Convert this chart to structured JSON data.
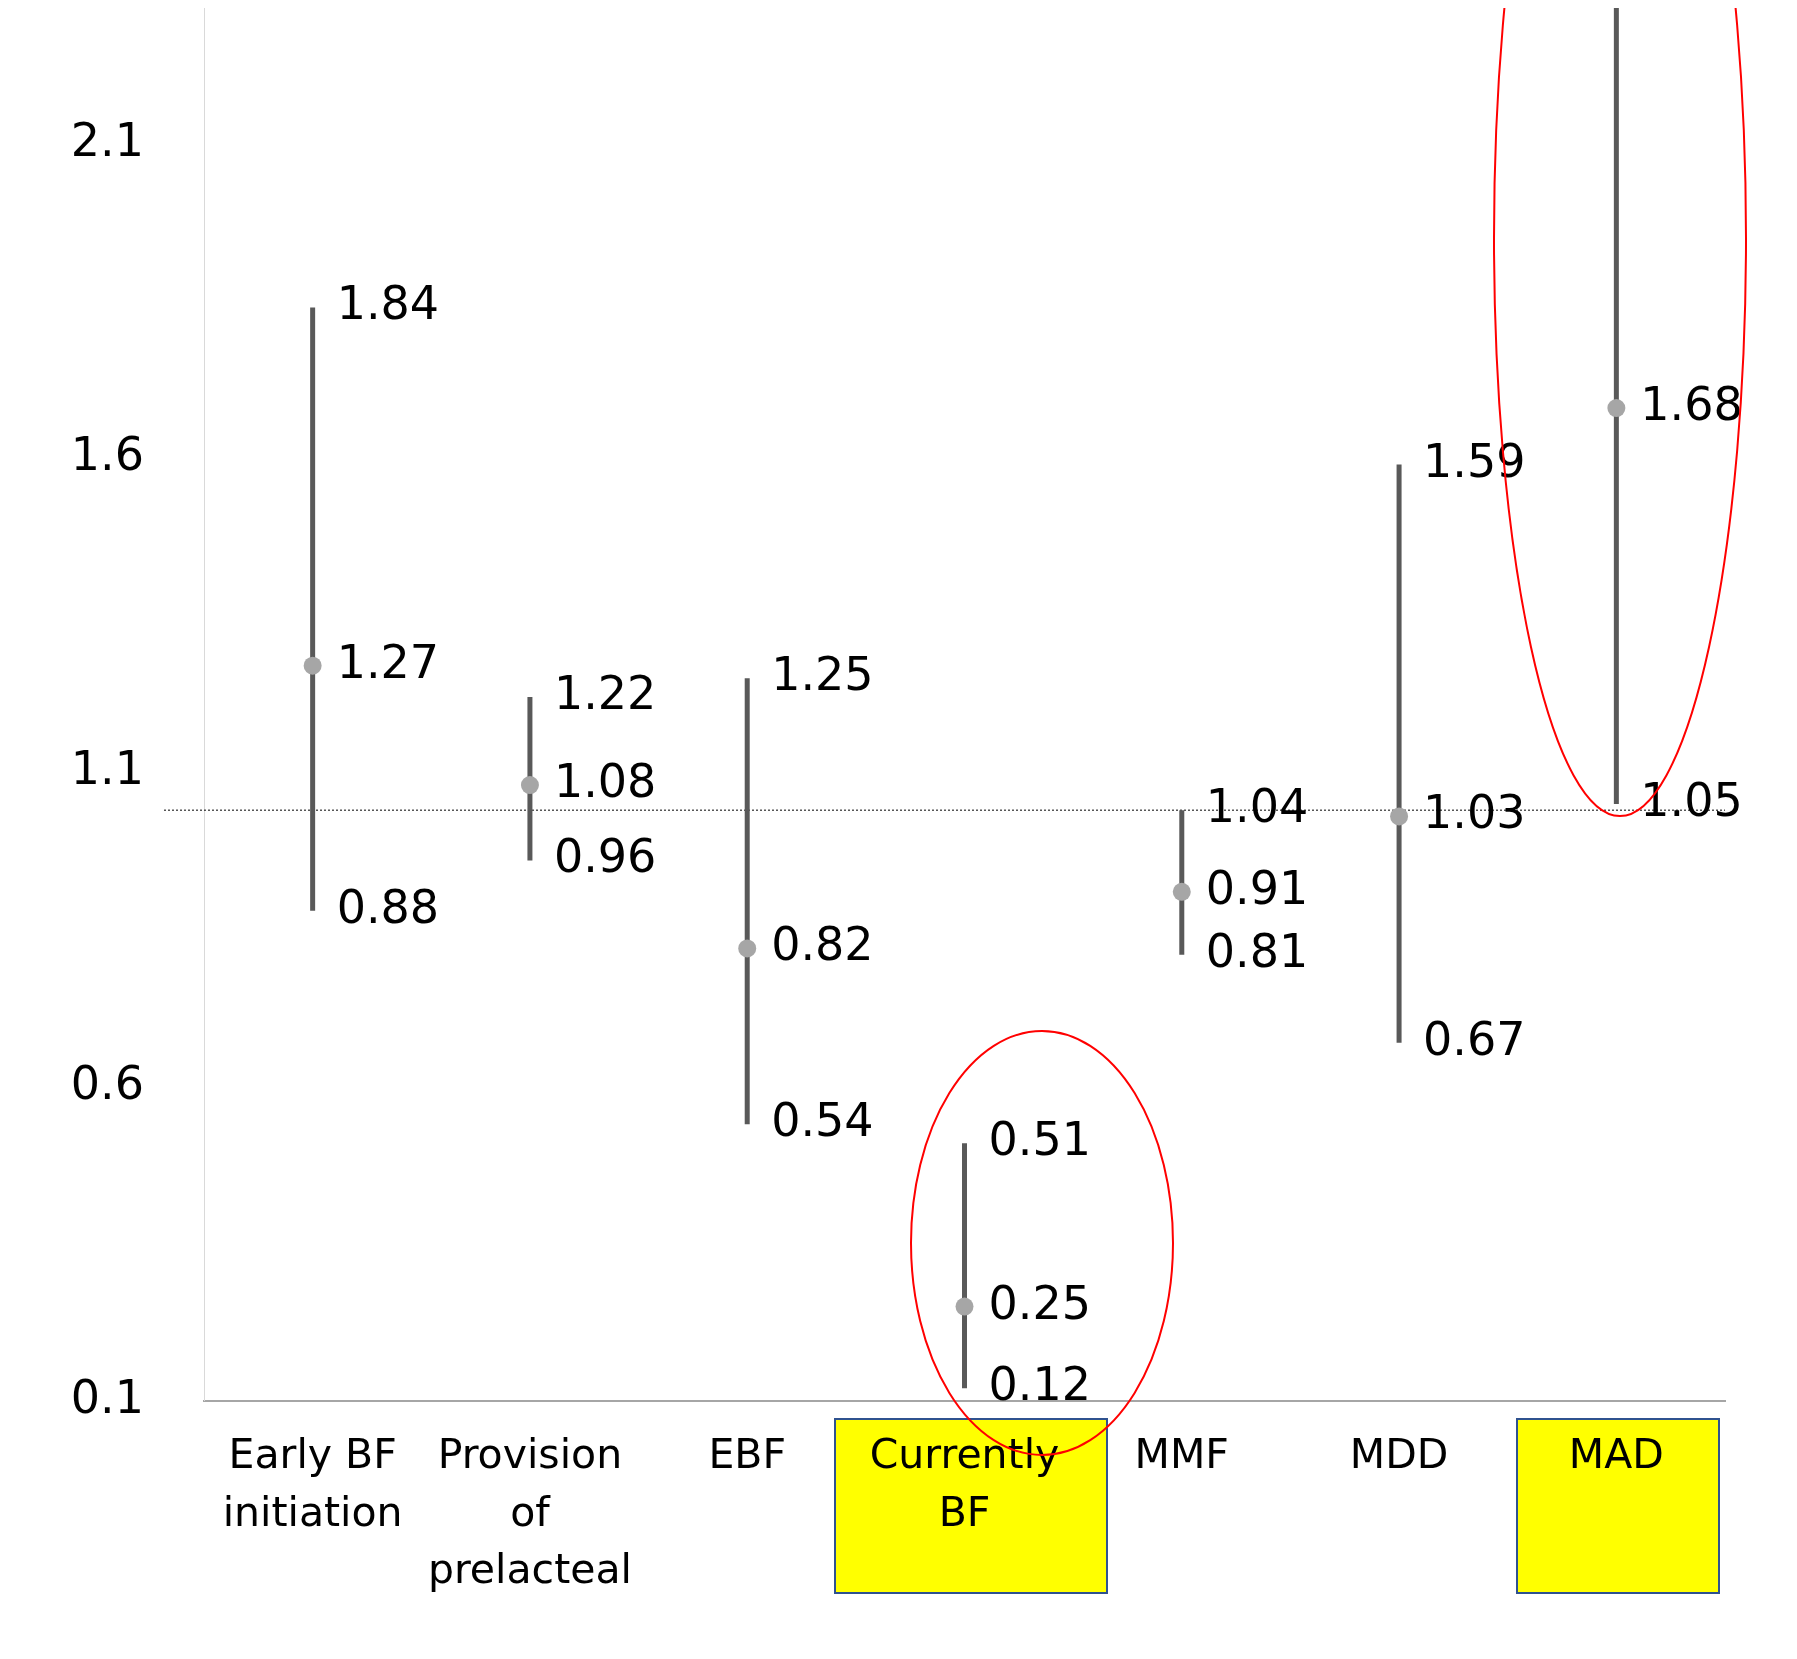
{
  "chart_data": {
    "type": "scatter",
    "categories": [
      "Early BF initiation",
      "Provision of prelacteal",
      "EBF",
      "Currently BF",
      "MMF",
      "MDD",
      "MAD"
    ],
    "values": [
      1.27,
      1.08,
      0.82,
      0.25,
      0.91,
      1.03,
      1.68
    ],
    "errors": [
      [
        0.88,
        1.84
      ],
      [
        0.96,
        1.22
      ],
      [
        0.54,
        1.25
      ],
      [
        0.12,
        0.51
      ],
      [
        0.81,
        1.04
      ],
      [
        0.67,
        1.59
      ],
      [
        1.05,
        2.33
      ]
    ],
    "color": "#a6a6a6",
    "marker": "circle",
    "data_labels": true,
    "ylim": [
      0.1,
      2.33
    ],
    "yticks": [
      0.1,
      0.6,
      1.1,
      1.6,
      2.1
    ],
    "annotations": [
      {
        "text": "1.84",
        "x": "Early BF initiation",
        "y": 1.84
      },
      {
        "text": "0.88",
        "x": "Early BF initiation",
        "y": 0.88
      },
      {
        "text": "1.22",
        "x": "Provision of prelacteal",
        "y": 1.22
      },
      {
        "text": "0.96",
        "x": "Provision of prelacteal",
        "y": 0.96
      },
      {
        "text": "1.25",
        "x": "EBF",
        "y": 1.25
      },
      {
        "text": "0.54",
        "x": "EBF",
        "y": 0.54
      },
      {
        "text": "0.51",
        "x": "Currently BF",
        "y": 0.51
      },
      {
        "text": "0.12",
        "x": "Currently BF",
        "y": 0.12
      },
      {
        "text": "1.04",
        "x": "MMF",
        "y": 1.04
      },
      {
        "text": "0.81",
        "x": "MMF",
        "y": 0.81
      },
      {
        "text": "1.59",
        "x": "MDD",
        "y": 1.59
      },
      {
        "text": "0.67",
        "x": "MDD",
        "y": 0.67
      },
      {
        "text": "1.05",
        "x": "MAD",
        "y": 1.05
      }
    ],
    "ref_lines": [
      {
        "axis": "y",
        "value": 1.04,
        "color": "#000000",
        "line_style": "dotted"
      }
    ]
  }
}
